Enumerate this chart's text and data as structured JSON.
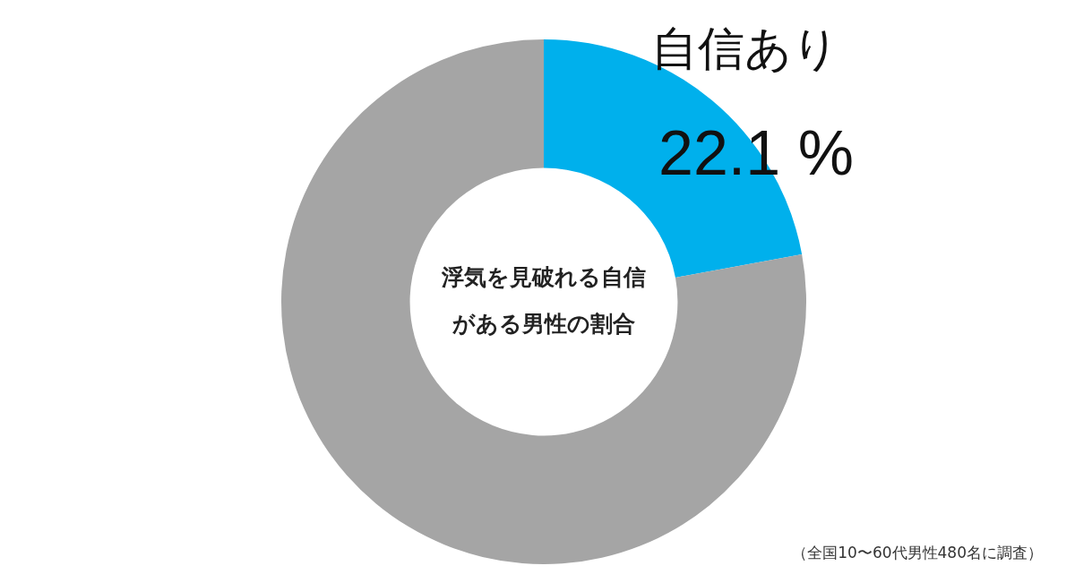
{
  "chart_data": {
    "type": "donut",
    "title": "浮気を見破れる自信がある男性の割合",
    "categories": [
      "自信あり",
      null
    ],
    "values": [
      22.1,
      77.9
    ],
    "colors": [
      "#00b0ec",
      "#a5a5a5"
    ],
    "value_labels": [
      "22.1 %",
      null
    ],
    "legend": false,
    "annotations": [
      "（全国10〜60代男性480名に調査）"
    ]
  }
}
